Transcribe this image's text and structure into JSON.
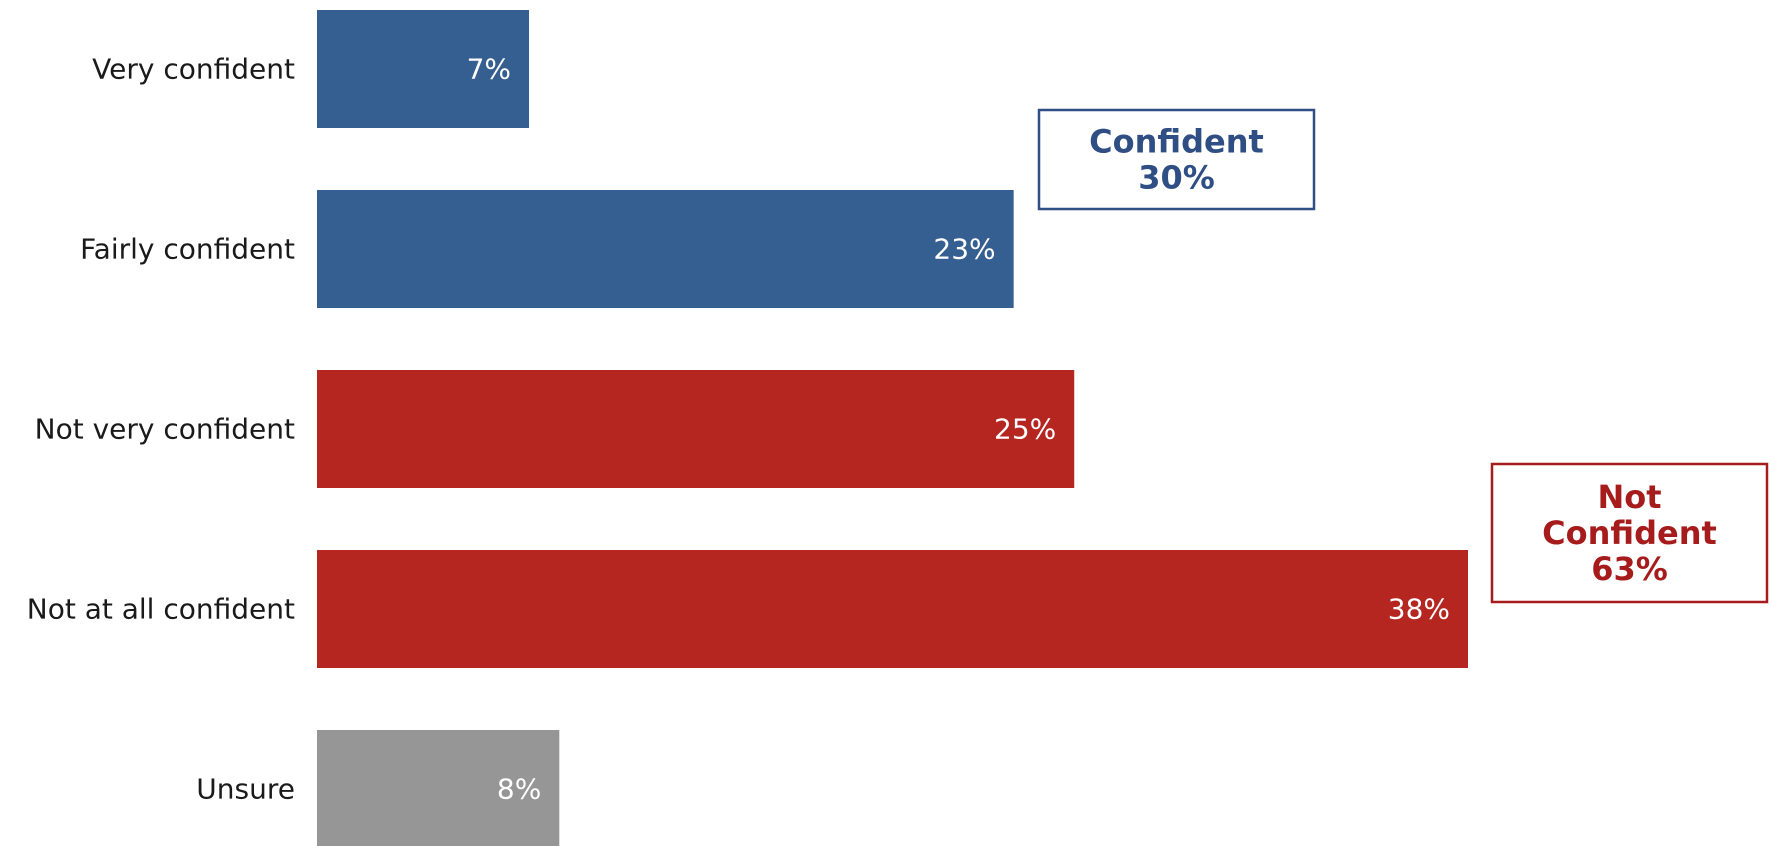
{
  "chart_data": {
    "type": "bar",
    "orientation": "horizontal",
    "categories": [
      "Very confident",
      "Fairly confident",
      "Not very confident",
      "Not at all confident",
      "Unsure"
    ],
    "values": [
      7,
      23,
      25,
      38,
      8
    ],
    "value_labels": [
      "7%",
      "23%",
      "25%",
      "38%",
      "8%"
    ],
    "bar_colors": [
      "#355F91",
      "#355F91",
      "#B52620",
      "#B52620",
      "#969696"
    ],
    "title": "",
    "xlabel": "",
    "ylabel": "",
    "xlim": [
      0,
      38
    ],
    "grid": false,
    "annotations": [
      {
        "lines": [
          "Confident",
          "30%"
        ],
        "color": "#2E4E84",
        "attached_to": "Fairly confident"
      },
      {
        "lines": [
          "Not",
          "Confident",
          "63%"
        ],
        "color": "#A61C1C",
        "attached_to": "Not at all confident"
      }
    ]
  }
}
